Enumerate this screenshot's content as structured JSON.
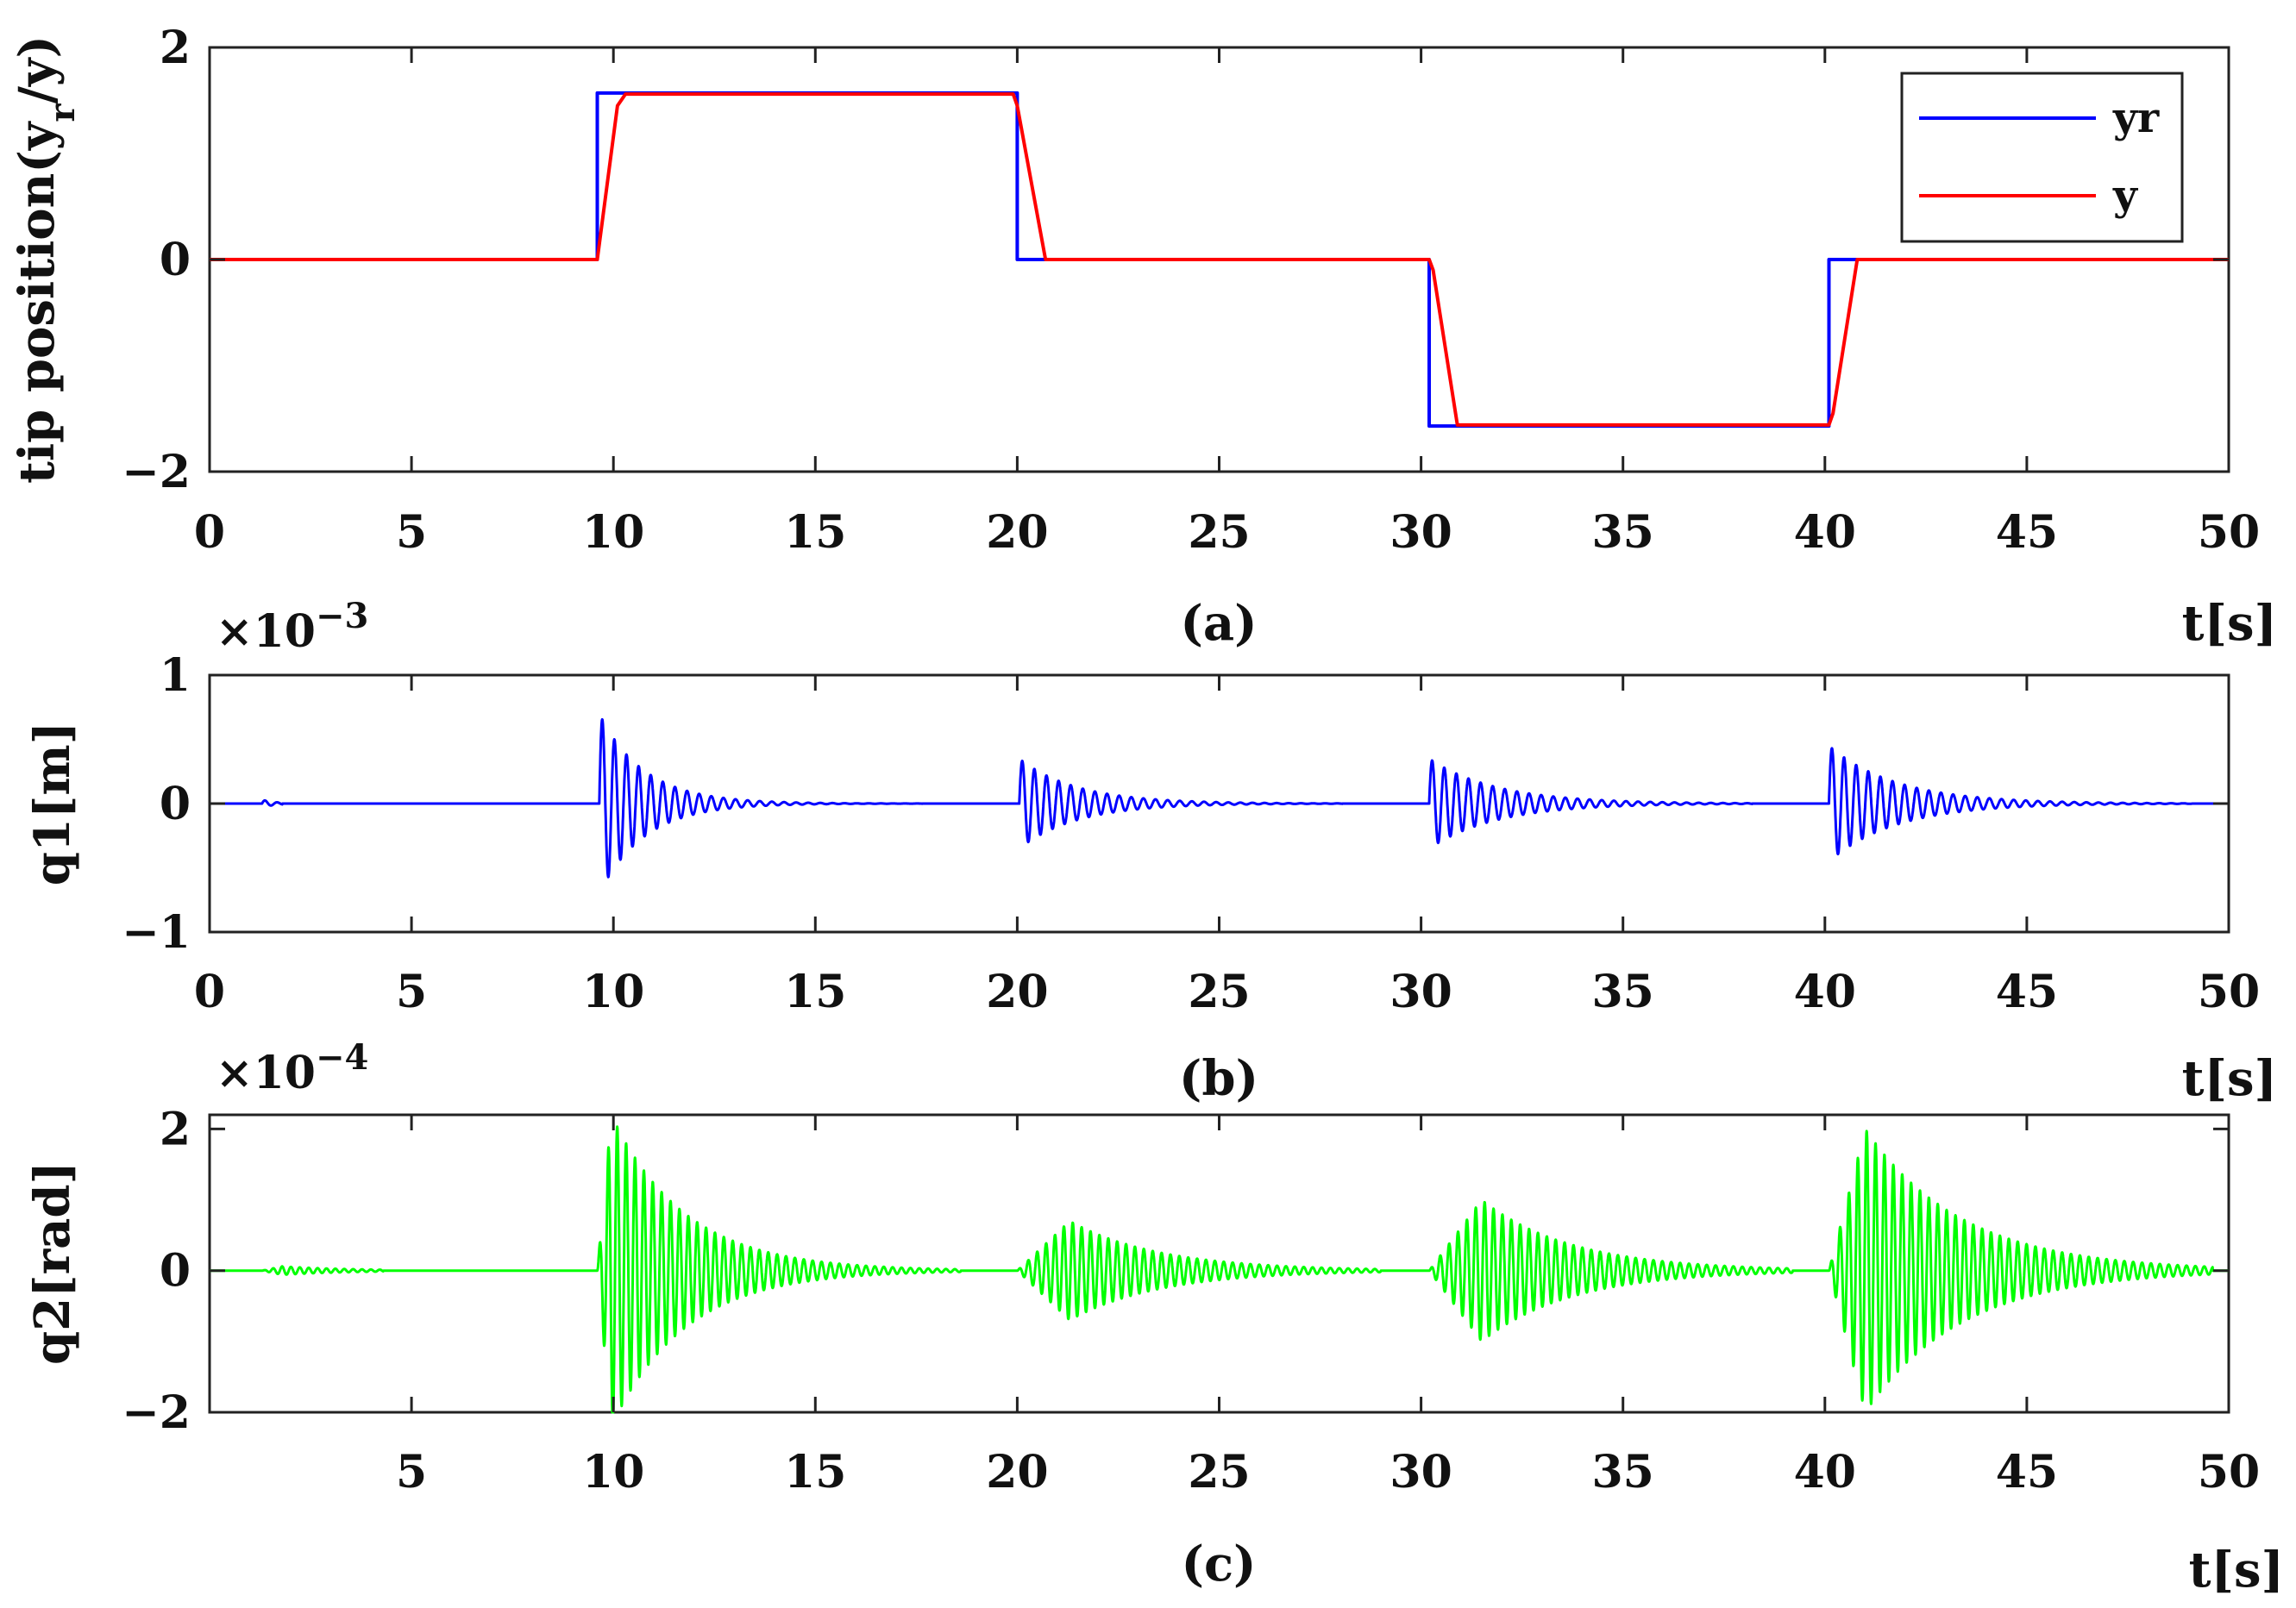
{
  "chart_data": [
    {
      "type": "line",
      "panel": "a",
      "caption": "(a)",
      "xlabel": "t[s]",
      "ylabel_main": "tip position(y",
      "ylabel_sub": "r",
      "ylabel_rest": "/y)",
      "xlim": [
        0,
        50
      ],
      "ylim": [
        -2,
        2
      ],
      "xticks": [
        "0",
        "5",
        "10",
        "15",
        "20",
        "25",
        "30",
        "35",
        "40",
        "45",
        "50"
      ],
      "yticks": [
        "−2",
        "0",
        "2"
      ],
      "legend_position": "top-right",
      "grid": false,
      "series": [
        {
          "name": "yr",
          "color": "#0000ff",
          "x": [
            0,
            9.6,
            9.6,
            20,
            20,
            30.2,
            30.2,
            40.1,
            40.1,
            50
          ],
          "y": [
            0,
            0,
            1.57,
            1.57,
            0,
            0,
            -1.57,
            -1.57,
            0,
            0
          ]
        },
        {
          "name": "y",
          "color": "#ff0000",
          "x": [
            0,
            9.6,
            10.1,
            10.3,
            19.9,
            20.0,
            20.7,
            30.2,
            30.3,
            30.9,
            40.1,
            40.2,
            40.8,
            50
          ],
          "y": [
            0,
            0,
            1.45,
            1.56,
            1.56,
            1.45,
            0,
            0,
            -0.1,
            -1.56,
            -1.56,
            -1.45,
            0,
            0
          ]
        }
      ]
    },
    {
      "type": "line",
      "panel": "b",
      "caption": "(b)",
      "xlabel": "t[s]",
      "ylabel": "q1[m]",
      "exponent_base": "×10",
      "exponent_power": "−3",
      "xlim": [
        0,
        50
      ],
      "ylim": [
        -1,
        1
      ],
      "xticks": [
        "0",
        "5",
        "10",
        "15",
        "20",
        "25",
        "30",
        "35",
        "40",
        "45",
        "50"
      ],
      "yticks": [
        "−1",
        "0",
        "1"
      ],
      "grid": false,
      "series": [
        {
          "name": "",
          "color": "#0000ff",
          "bursts": [
            {
              "t0": 1.3,
              "amp": 0.03,
              "decay": 3.0,
              "dur": 0.5
            },
            {
              "t0": 9.65,
              "amp": 0.7,
              "decay": 0.9,
              "dur": 8
            },
            {
              "t0": 20.05,
              "amp": 0.35,
              "decay": 0.7,
              "dur": 8
            },
            {
              "t0": 30.2,
              "amp": 0.35,
              "decay": 0.6,
              "dur": 8
            },
            {
              "t0": 40.1,
              "amp": 0.45,
              "decay": 0.6,
              "dur": 9
            }
          ],
          "period": 0.3
        }
      ]
    },
    {
      "type": "line",
      "panel": "c",
      "caption": "(c)",
      "xlabel": "t[s]",
      "ylabel": "q2[rad]",
      "exponent_base": "×10",
      "exponent_power": "−4",
      "xlim": [
        0,
        50
      ],
      "ylim": [
        -2,
        2.2
      ],
      "xticks": [
        "5",
        "10",
        "15",
        "20",
        "25",
        "30",
        "35",
        "40",
        "45",
        "50"
      ],
      "xtick_values": [
        5,
        10,
        15,
        20,
        25,
        30,
        35,
        40,
        45,
        50
      ],
      "yticks": [
        "−2",
        "0",
        "2"
      ],
      "grid": false,
      "series": [
        {
          "name": "",
          "color": "#00ff00",
          "bursts": [
            {
              "t0": 1.3,
              "amp": 0.06,
              "rise": 0.5,
              "decay": 0.6,
              "dur": 3
            },
            {
              "t0": 9.6,
              "amp": 2.2,
              "rise": 0.35,
              "decay": 0.55,
              "dur": 9
            },
            {
              "t0": 20.0,
              "amp": 0.7,
              "rise": 1.3,
              "decay": 0.45,
              "dur": 9
            },
            {
              "t0": 30.2,
              "amp": 1.0,
              "rise": 1.3,
              "decay": 0.45,
              "dur": 9
            },
            {
              "t0": 40.1,
              "amp": 2.0,
              "rise": 0.9,
              "decay": 0.42,
              "dur": 9.5
            }
          ],
          "period": 0.22
        }
      ]
    }
  ]
}
